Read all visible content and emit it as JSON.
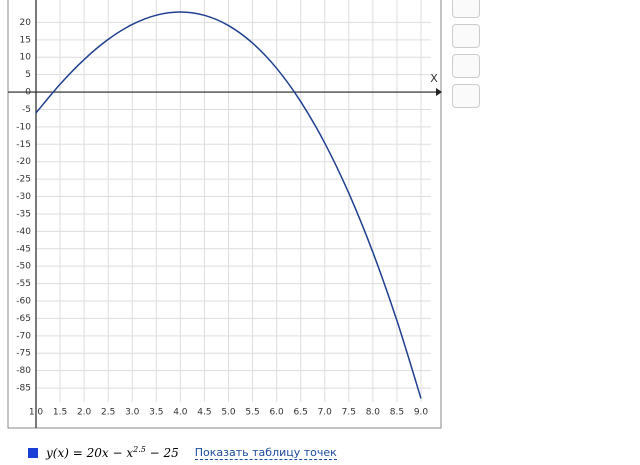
{
  "chart_data": {
    "type": "line",
    "x": [
      1.0,
      1.5,
      2.0,
      2.5,
      3.0,
      3.5,
      4.0,
      4.5,
      5.0,
      5.5,
      6.0,
      6.5,
      7.0,
      7.5,
      8.0,
      8.5,
      9.0
    ],
    "series": [
      {
        "color": "#1f3f8f",
        "values": [
          -6,
          2.24,
          9.34,
          15.12,
          19.41,
          22.08,
          23,
          22.04,
          19.1,
          14.06,
          6.82,
          -2.72,
          -14.64,
          -29.05,
          -46.02,
          -65.64,
          -88
        ]
      }
    ],
    "xlim": [
      1.0,
      9.0
    ],
    "ylim": [
      -89,
      25
    ],
    "xticks": [
      {
        "value": 1,
        "label": "1.0"
      },
      1.5,
      {
        "value": 2,
        "label": "2.0"
      },
      2.5,
      {
        "value": 3,
        "label": "3.0"
      },
      3.5,
      {
        "value": 4,
        "label": "4.0"
      },
      4.5,
      {
        "value": 5,
        "label": "5.0"
      },
      5.5,
      {
        "value": 6,
        "label": "6.0"
      },
      6.5,
      {
        "value": 7,
        "label": "7.0"
      },
      7.5,
      {
        "value": 8,
        "label": "8.0"
      },
      8.5,
      {
        "value": 9,
        "label": "9.0"
      }
    ],
    "yticks": [
      20,
      15,
      10,
      5,
      0,
      -5,
      -10,
      -15,
      -20,
      -25,
      -30,
      -35,
      -40,
      -45,
      -50,
      -55,
      -60,
      -65,
      -70,
      -75,
      -80,
      -85
    ],
    "grid": true,
    "x_axis_label": "X",
    "legend_formula": [
      "y(x) = 20x − x",
      "2.5",
      " − 25"
    ],
    "legend_link": "Показать таблицу точек"
  }
}
